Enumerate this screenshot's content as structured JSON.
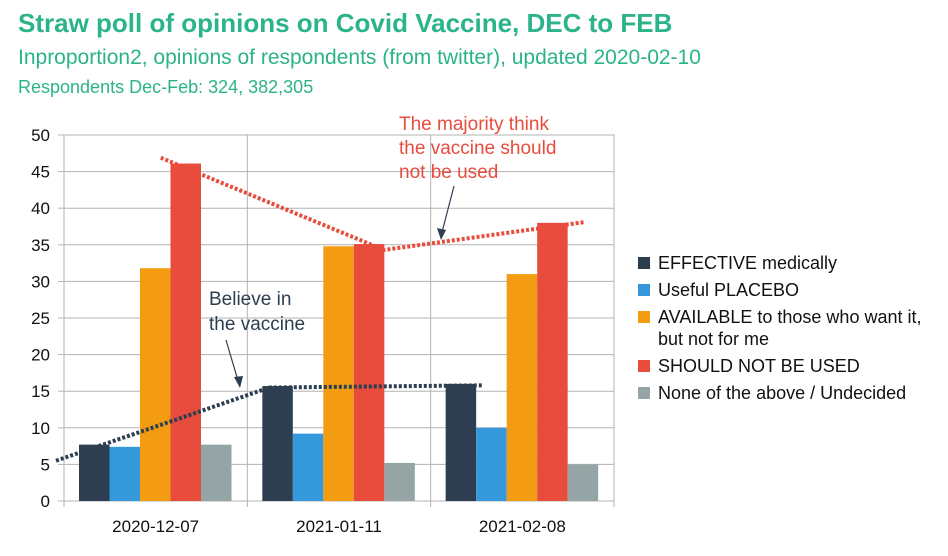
{
  "header": {
    "title": "Straw poll of opinions on Covid Vaccine, DEC to FEB",
    "subtitle": "Inproportion2, opinions of respondents (from twitter), updated 2020-02-10",
    "respondents": "Respondents Dec-Feb: 324, 382,305"
  },
  "chart_data": {
    "type": "bar",
    "categories": [
      "2020-12-07",
      "2021-01-11",
      "2021-02-08"
    ],
    "ylim": [
      0,
      50
    ],
    "yticks": [
      0,
      5,
      10,
      15,
      20,
      25,
      30,
      35,
      40,
      45,
      50
    ],
    "grid": true,
    "legend_placement": "right",
    "series": [
      {
        "name": "EFFECTIVE medically",
        "color": "#2c3e50",
        "values": [
          7.7,
          15.7,
          16.0
        ]
      },
      {
        "name": "Useful PLACEBO",
        "color": "#3498db",
        "values": [
          7.4,
          9.2,
          10.0
        ]
      },
      {
        "name": "AVAILABLE to those who want it, but not for me",
        "color": "#f39c12",
        "values": [
          31.8,
          34.8,
          31.0
        ]
      },
      {
        "name": "SHOULD NOT BE USED",
        "color": "#e74c3c",
        "values": [
          46.1,
          35.1,
          38.0
        ]
      },
      {
        "name": "None of the above / Undecided",
        "color": "#95a5a6",
        "values": [
          7.7,
          5.2,
          5.0
        ]
      }
    ],
    "annotations": [
      {
        "text_lines": [
          "The majority think",
          "the vaccine should",
          "not be used"
        ],
        "color": "#e74c3c"
      },
      {
        "text_lines": [
          "Believe in",
          "the vaccine"
        ],
        "color": "#2c3e50"
      }
    ]
  }
}
